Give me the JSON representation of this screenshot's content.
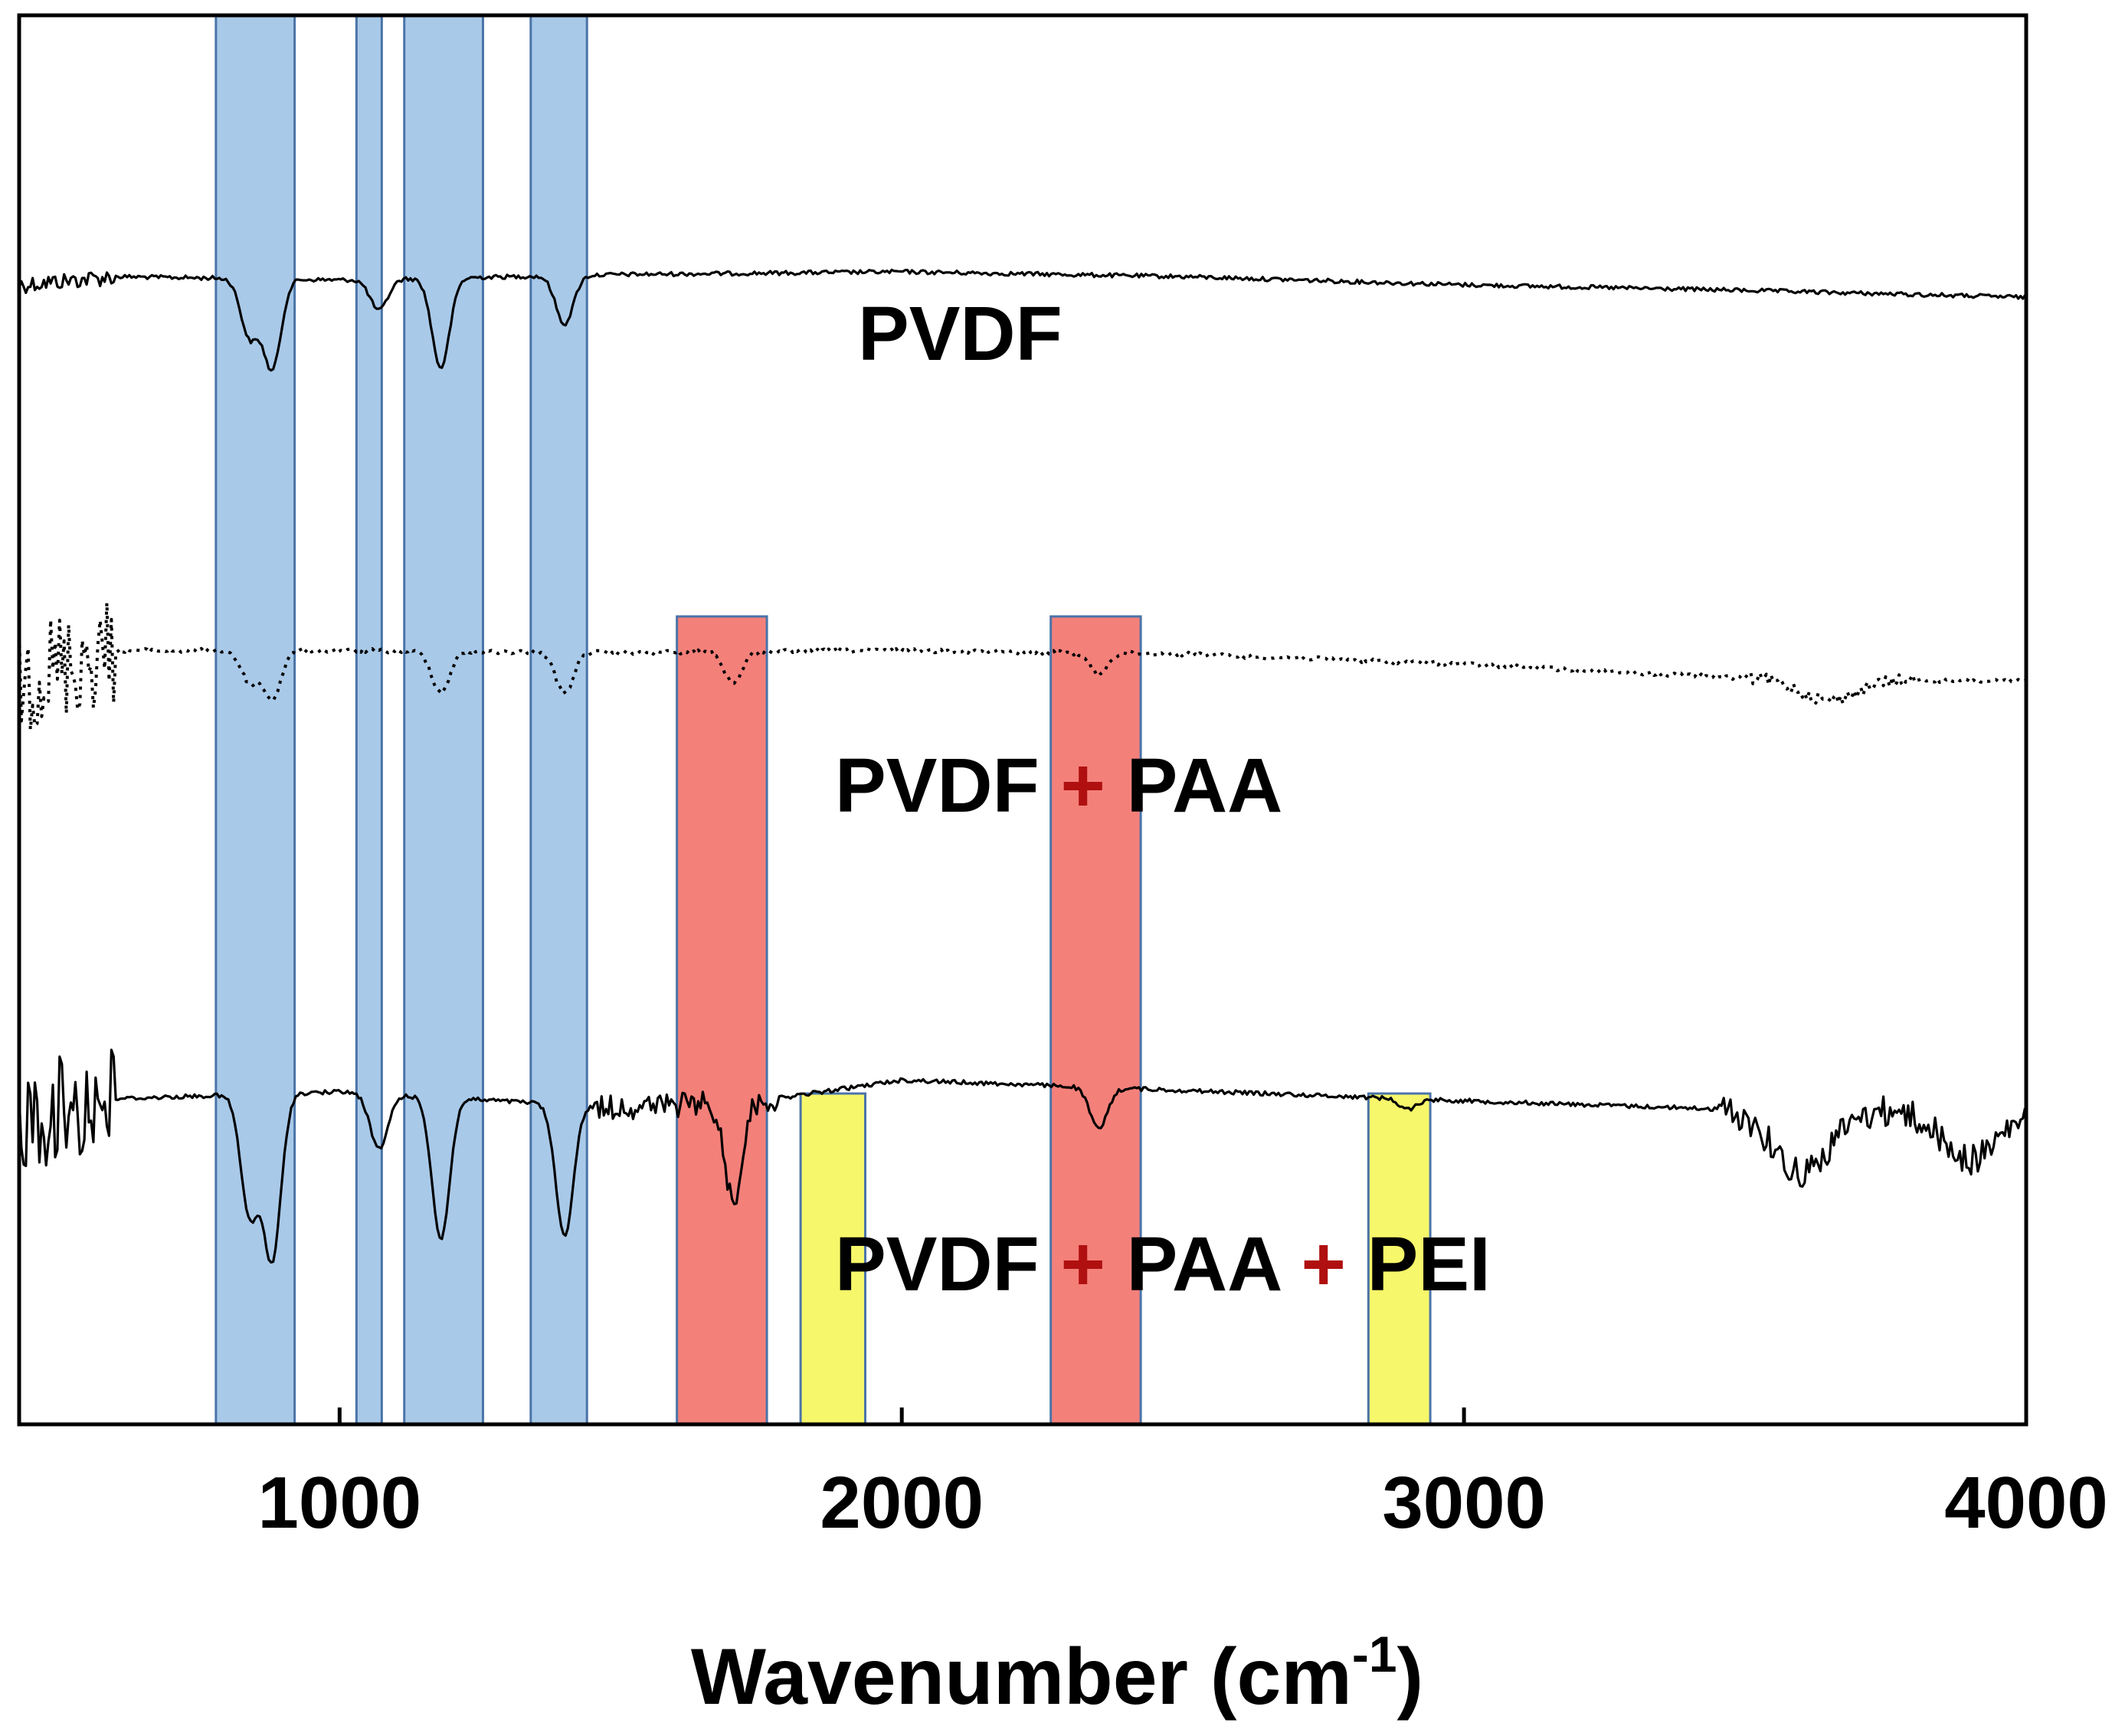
{
  "chart_data": {
    "type": "line",
    "title": "",
    "xlabel": "Wavenumber (cm",
    "xlabel_superscript": "-1",
    "xlabel_suffix": ")",
    "ylabel": "",
    "xlim": [
      430,
      4000
    ],
    "x_ticks": [
      1000,
      2000,
      3000,
      4000
    ],
    "x_tick_labels": [
      "1000",
      "2000",
      "3000",
      "4000"
    ],
    "grid": false,
    "y_axis": "offset transmittance (arbitrary, no tick labels)",
    "series": [
      {
        "name": "PVDF",
        "line_style": "solid",
        "color": "#000000",
        "baseline": [
          [
            430,
            0.8
          ],
          [
            600,
            0.68
          ],
          [
            1000,
            0.73
          ],
          [
            1500,
            0.65
          ],
          [
            2000,
            0.61
          ],
          [
            2500,
            0.68
          ],
          [
            3000,
            0.8
          ],
          [
            3500,
            0.88
          ],
          [
            4000,
            0.98
          ]
        ],
        "peaks": [
          {
            "wavenumber": 840,
            "depth": 0.85
          },
          {
            "wavenumber": 880,
            "depth": 1.3
          },
          {
            "wavenumber": 1070,
            "depth": 0.45
          },
          {
            "wavenumber": 1180,
            "depth": 1.3
          },
          {
            "wavenumber": 1400,
            "depth": 0.7
          }
        ]
      },
      {
        "name": "PVDF + PAA",
        "line_style": "dotted",
        "color": "#000000",
        "baseline": [
          [
            430,
            0.95
          ],
          [
            600,
            0.55
          ],
          [
            1000,
            0.55
          ],
          [
            1500,
            0.58
          ],
          [
            2000,
            0.55
          ],
          [
            2500,
            0.6
          ],
          [
            3000,
            0.75
          ],
          [
            3500,
            0.95
          ],
          [
            4000,
            1.0
          ]
        ],
        "peaks": [
          {
            "wavenumber": 840,
            "depth": 0.45
          },
          {
            "wavenumber": 880,
            "depth": 0.7
          },
          {
            "wavenumber": 1180,
            "depth": 0.6
          },
          {
            "wavenumber": 1400,
            "depth": 0.6
          },
          {
            "wavenumber": 1700,
            "depth": 0.45
          },
          {
            "wavenumber": 2350,
            "depth": 0.3
          },
          {
            "wavenumber": 3650,
            "depth": 0.3
          }
        ]
      },
      {
        "name": "PVDF + PAA + PEI",
        "line_style": "solid",
        "color": "#000000",
        "baseline": [
          [
            430,
            1.0
          ],
          [
            600,
            0.72
          ],
          [
            1000,
            0.62
          ],
          [
            1500,
            0.85
          ],
          [
            1750,
            0.75
          ],
          [
            2000,
            0.45
          ],
          [
            2500,
            0.6
          ],
          [
            3000,
            0.75
          ],
          [
            3500,
            0.88
          ],
          [
            4000,
            0.9
          ]
        ],
        "peaks": [
          {
            "wavenumber": 840,
            "depth": 1.75
          },
          {
            "wavenumber": 880,
            "depth": 2.4
          },
          {
            "wavenumber": 1070,
            "depth": 0.8
          },
          {
            "wavenumber": 1180,
            "depth": 2.05
          },
          {
            "wavenumber": 1400,
            "depth": 1.9
          },
          {
            "wavenumber": 1700,
            "depth": 1.4
          },
          {
            "wavenumber": 2350,
            "depth": 0.6
          },
          {
            "wavenumber": 2900,
            "depth": 0.15
          },
          {
            "wavenumber": 3600,
            "depth": 0.9
          },
          {
            "wavenumber": 3900,
            "depth": 0.7
          }
        ]
      }
    ],
    "highlight_bands": [
      {
        "x0": 780,
        "x1": 920,
        "color": "blue",
        "applies_to": "all"
      },
      {
        "x0": 1030,
        "x1": 1075,
        "color": "blue",
        "applies_to": "all"
      },
      {
        "x0": 1115,
        "x1": 1255,
        "color": "blue",
        "applies_to": "all"
      },
      {
        "x0": 1340,
        "x1": 1440,
        "color": "blue",
        "applies_to": "all"
      },
      {
        "x0": 1600,
        "x1": 1760,
        "color": "red",
        "applies_to": "PVDF + PAA"
      },
      {
        "x0": 2265,
        "x1": 2425,
        "color": "red",
        "applies_to": "PVDF + PAA"
      },
      {
        "x0": 1820,
        "x1": 1935,
        "color": "yellow",
        "applies_to": "PVDF + PAA + PEI"
      },
      {
        "x0": 2830,
        "x1": 2940,
        "color": "yellow",
        "applies_to": "PVDF + PAA + PEI"
      }
    ]
  },
  "colors": {
    "band_blue": "#a9c9e8",
    "band_red": "#f4807a",
    "band_yellow": "#f7f76b",
    "band_border": "#4a74a8",
    "plus_red": "#b01010"
  }
}
